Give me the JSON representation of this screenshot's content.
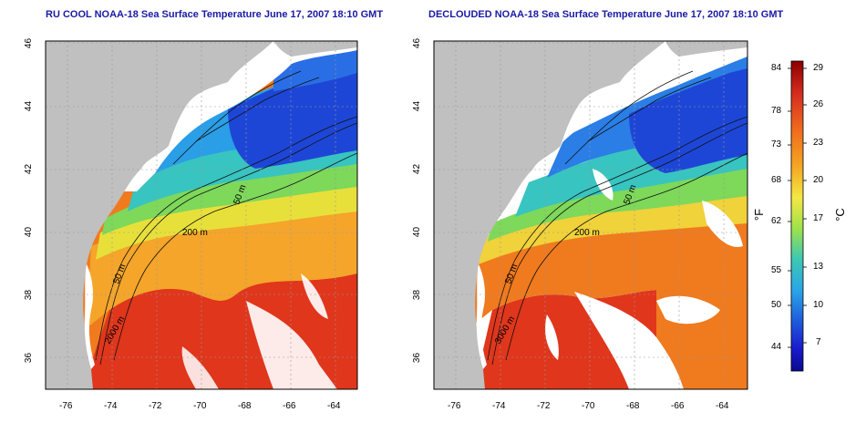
{
  "panels": [
    {
      "title": "RU COOL NOAA-18 Sea Surface Temperature June 17, 2007 18:10 GMT",
      "contour_labels": [
        "200 m",
        "50 m",
        "50 m",
        "2000 m"
      ]
    },
    {
      "title": "DECLOUDED NOAA-18 Sea Surface Temperature June 17, 2007 18:10 GMT",
      "contour_labels": [
        "200 m",
        "50 m",
        "50 m",
        "3000 m"
      ]
    }
  ],
  "axes": {
    "x_ticks": [
      "-76",
      "-74",
      "-72",
      "-70",
      "-68",
      "-66",
      "-64"
    ],
    "y_ticks": [
      "46",
      "44",
      "42",
      "40",
      "38",
      "36"
    ]
  },
  "colorbar": {
    "fahrenheit_ticks": [
      "84",
      "78",
      "73",
      "68",
      "62",
      "55",
      "50",
      "44"
    ],
    "celsius_ticks": [
      "29",
      "26",
      "23",
      "20",
      "17",
      "13",
      "10",
      "7"
    ],
    "unit_f": "°F",
    "unit_c": "°C",
    "colors": [
      "#8b0000",
      "#d42a1e",
      "#f06a1e",
      "#f5a623",
      "#f4e842",
      "#9ee24a",
      "#3cc8b4",
      "#2aa6e6",
      "#1e5adc",
      "#1a1acc",
      "#0a0a90"
    ]
  },
  "colors": {
    "land": "#c0c0c0",
    "cloud": "#ffffff",
    "title": "#1a1aa6"
  }
}
